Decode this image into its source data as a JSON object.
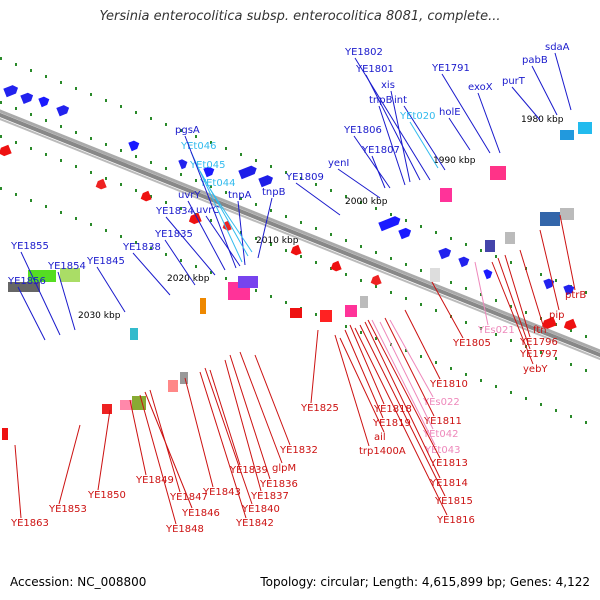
{
  "title": "Yersinia enterocolitica subsp. enterocolitica 8081, complete...",
  "accession": "Accession: NC_008800",
  "topology": "Topology: circular; Length: 4,615,899 bp; Genes: 4,122",
  "colors": {
    "upper_label": "#1a1acc",
    "upper_trna": "#33bbee",
    "lower_label": "#cc1111",
    "lower_trna": "#ee88bb",
    "backbone": "#888888",
    "tick": "#2a8a2a"
  },
  "ticks": [
    "1980 kbp",
    "1990 kbp",
    "2000 kbp",
    "2010 kbp",
    "2020 kbp",
    "2030 kbp"
  ],
  "upper_labels": [
    "sdaA",
    "pabB",
    "purT",
    "exoX",
    "YE1791",
    "YE1802",
    "YE1801",
    "xis",
    "tnpB",
    "int",
    "YEt020",
    "holE",
    "YE1806",
    "YE1807",
    "yenI",
    "YE1809",
    "tnpB",
    "tnpA",
    "uvrC",
    "YEt044",
    "YEt045",
    "YEt046",
    "pgsA",
    "uvrY",
    "YE1834",
    "YE1835",
    "YE1838",
    "YE1845",
    "YE1854",
    "YE1855",
    "YE1856"
  ],
  "lower_labels": [
    "ptrB",
    "pip",
    "ftn",
    "YE1796",
    "YE1797",
    "yebY",
    "YEs021",
    "YE1805",
    "YE1810",
    "YEs022",
    "YE1811",
    "YEt042",
    "YEt043",
    "YE1813",
    "YE1814",
    "YE1815",
    "YE1816",
    "YE1818",
    "YE1819",
    "ail",
    "trp1400A",
    "YE1825",
    "YE1832",
    "glpM",
    "YE1836",
    "YE1837",
    "YE1839",
    "YE1840",
    "YE1842",
    "YE1843",
    "YE1847",
    "YE1846",
    "YE1848",
    "YE1849",
    "YE1850",
    "YE1853",
    "YE1863"
  ]
}
